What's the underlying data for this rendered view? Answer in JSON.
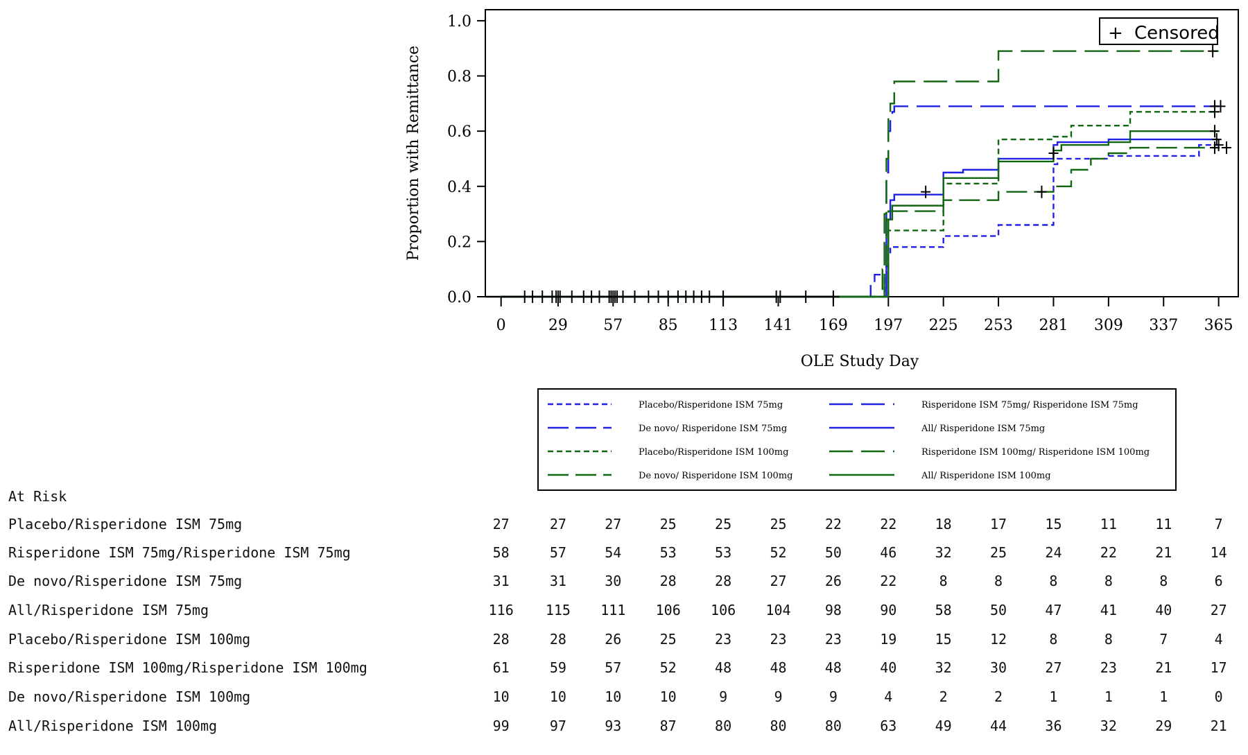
{
  "chart_data": {
    "type": "line",
    "step": true,
    "ylabel": "Proportion with Remittance",
    "xlabel": "OLE Study Day",
    "xticks": [
      0,
      29,
      57,
      85,
      113,
      141,
      169,
      197,
      225,
      253,
      281,
      309,
      337,
      365
    ],
    "xlim": [
      -8,
      375
    ],
    "yticks": [
      0.0,
      0.2,
      0.4,
      0.6,
      0.8,
      1.0
    ],
    "yticklabels": [
      "0.0",
      "0.2",
      "0.4",
      "0.6",
      "0.8",
      "1.0"
    ],
    "ylim": [
      0,
      1.04
    ],
    "censor_legend": {
      "symbol": "+",
      "label": "Censored"
    },
    "censor_day0_ticks": [
      12,
      16,
      21,
      26,
      28,
      29,
      30,
      36,
      42,
      46,
      50,
      55,
      56,
      57,
      58,
      59,
      62,
      68,
      75,
      80,
      85,
      90,
      94,
      98,
      102,
      106,
      113,
      140,
      142,
      155,
      169
    ],
    "series": [
      {
        "name": "Placebo/Risperidone ISM 75mg",
        "color": "#1f1fe6",
        "dash": "8,5",
        "steps": [
          [
            0,
            0
          ],
          [
            194,
            0
          ],
          [
            195,
            0.07
          ],
          [
            196,
            0.11
          ],
          [
            197,
            0.15
          ],
          [
            198,
            0.18
          ],
          [
            225,
            0.22
          ],
          [
            253,
            0.26
          ],
          [
            281,
            0.48
          ],
          [
            283,
            0.5
          ],
          [
            309,
            0.51
          ],
          [
            355,
            0.55
          ]
        ],
        "end": 365,
        "censored": [
          [
            365,
            0.55
          ]
        ]
      },
      {
        "name": "Risperidone ISM 75mg/ Risperidone ISM 75mg",
        "color": "#1f1fe6",
        "dash": "34,12",
        "steps": [
          [
            0,
            0
          ],
          [
            195,
            0
          ],
          [
            196,
            0.45
          ],
          [
            197,
            0.6
          ],
          [
            198,
            0.64
          ],
          [
            199,
            0.67
          ],
          [
            200,
            0.69
          ]
        ],
        "end": 365,
        "censored": [
          [
            363,
            0.69
          ],
          [
            366,
            0.69
          ]
        ]
      },
      {
        "name": "De novo/ Risperidone ISM 75mg",
        "color": "#1f1fe6",
        "dash": "30,10",
        "steps": [
          [
            0,
            0
          ],
          [
            187,
            0
          ],
          [
            188,
            0.05
          ],
          [
            190,
            0.08
          ],
          [
            193,
            0.08
          ]
        ],
        "end": 193,
        "censored": []
      },
      {
        "name": "All/ Risperidone ISM 75mg",
        "color": "#1f1fe6",
        "dash": "",
        "steps": [
          [
            0,
            0
          ],
          [
            195,
            0
          ],
          [
            196,
            0.28
          ],
          [
            198,
            0.35
          ],
          [
            200,
            0.37
          ],
          [
            225,
            0.45
          ],
          [
            235,
            0.46
          ],
          [
            253,
            0.5
          ],
          [
            281,
            0.55
          ],
          [
            283,
            0.56
          ],
          [
            309,
            0.57
          ],
          [
            355,
            0.57
          ]
        ],
        "end": 365,
        "censored": [
          [
            216,
            0.38
          ],
          [
            281,
            0.52
          ],
          [
            364,
            0.57
          ]
        ]
      },
      {
        "name": "Placebo/Risperidone ISM 100mg",
        "color": "#116611",
        "dash": "8,5",
        "steps": [
          [
            0,
            0
          ],
          [
            196,
            0
          ],
          [
            197,
            0.24
          ],
          [
            210,
            0.24
          ],
          [
            225,
            0.41
          ],
          [
            253,
            0.57
          ],
          [
            281,
            0.58
          ],
          [
            290,
            0.62
          ],
          [
            309,
            0.62
          ],
          [
            320,
            0.67
          ]
        ],
        "end": 365,
        "censored": [
          [
            363,
            0.67
          ]
        ]
      },
      {
        "name": "Risperidone ISM 100mg/ Risperidone ISM 100mg",
        "color": "#116611",
        "dash": "34,12",
        "steps": [
          [
            0,
            0
          ],
          [
            194,
            0
          ],
          [
            195,
            0.3
          ],
          [
            196,
            0.5
          ],
          [
            197,
            0.65
          ],
          [
            198,
            0.7
          ],
          [
            200,
            0.78
          ],
          [
            253,
            0.89
          ]
        ],
        "end": 365,
        "censored": [
          [
            362,
            0.89
          ]
        ]
      },
      {
        "name": "De novo/ Risperidone ISM 100mg",
        "color": "#116611",
        "dash": "30,10",
        "steps": [
          [
            0,
            0
          ],
          [
            193,
            0
          ],
          [
            194,
            0.1
          ],
          [
            196,
            0.3
          ],
          [
            197,
            0.31
          ],
          [
            225,
            0.35
          ],
          [
            253,
            0.38
          ],
          [
            281,
            0.4
          ],
          [
            290,
            0.46
          ],
          [
            300,
            0.5
          ],
          [
            309,
            0.52
          ],
          [
            320,
            0.54
          ]
        ],
        "end": 365,
        "censored": [
          [
            275,
            0.38
          ],
          [
            363,
            0.54
          ],
          [
            369,
            0.54
          ]
        ]
      },
      {
        "name": "All/ Risperidone ISM 100mg",
        "color": "#116611",
        "dash": "",
        "steps": [
          [
            0,
            0
          ],
          [
            196,
            0
          ],
          [
            197,
            0.28
          ],
          [
            199,
            0.33
          ],
          [
            225,
            0.43
          ],
          [
            253,
            0.49
          ],
          [
            281,
            0.53
          ],
          [
            285,
            0.55
          ],
          [
            309,
            0.56
          ],
          [
            320,
            0.6
          ]
        ],
        "end": 365,
        "censored": [
          [
            363,
            0.6
          ]
        ]
      }
    ],
    "legend_rows": [
      [
        {
          "series": 0
        },
        {
          "series": 1
        }
      ],
      [
        {
          "series": 2
        },
        {
          "series": 3
        }
      ],
      [
        {
          "series": 4
        },
        {
          "series": 5
        }
      ],
      [
        {
          "series": 6
        },
        {
          "series": 7
        }
      ]
    ]
  },
  "risk_table": {
    "title": "At Risk",
    "rows": [
      {
        "label": "Placebo/Risperidone ISM 75mg",
        "values": [
          "27",
          "27",
          "27",
          "25",
          "25",
          "25",
          "22",
          "22",
          "18",
          "17",
          "15",
          "11",
          "11",
          "7"
        ]
      },
      {
        "label": "Risperidone ISM 75mg/Risperidone ISM 75mg",
        "values": [
          "58",
          "57",
          "54",
          "53",
          "53",
          "52",
          "50",
          "46",
          "32",
          "25",
          "24",
          "22",
          "21",
          "14"
        ]
      },
      {
        "label": "De novo/Risperidone ISM 75mg",
        "values": [
          "31",
          "31",
          "30",
          "28",
          "28",
          "27",
          "26",
          "22",
          "8",
          "8",
          "8",
          "8",
          "8",
          "6"
        ]
      },
      {
        "label": "All/Risperidone ISM 75mg",
        "values": [
          "116",
          "115",
          "111",
          "106",
          "106",
          "104",
          "98",
          "90",
          "58",
          "50",
          "47",
          "41",
          "40",
          "27"
        ]
      },
      {
        "label": "Placebo/Risperidone ISM 100mg",
        "values": [
          "28",
          "28",
          "26",
          "25",
          "23",
          "23",
          "23",
          "19",
          "15",
          "12",
          "8",
          "8",
          "7",
          "4"
        ]
      },
      {
        "label": "Risperidone ISM 100mg/Risperidone ISM 100mg",
        "values": [
          "61",
          "59",
          "57",
          "52",
          "48",
          "48",
          "48",
          "40",
          "32",
          "30",
          "27",
          "23",
          "21",
          "17"
        ]
      },
      {
        "label": "De novo/Risperidone ISM 100mg",
        "values": [
          "10",
          "10",
          "10",
          "10",
          "9",
          "9",
          "9",
          "4",
          "2",
          "2",
          "1",
          "1",
          "1",
          "0"
        ]
      },
      {
        "label": "All/Risperidone ISM 100mg",
        "values": [
          "99",
          "97",
          "93",
          "87",
          "80",
          "80",
          "80",
          "63",
          "49",
          "44",
          "36",
          "32",
          "29",
          "21"
        ]
      }
    ]
  }
}
